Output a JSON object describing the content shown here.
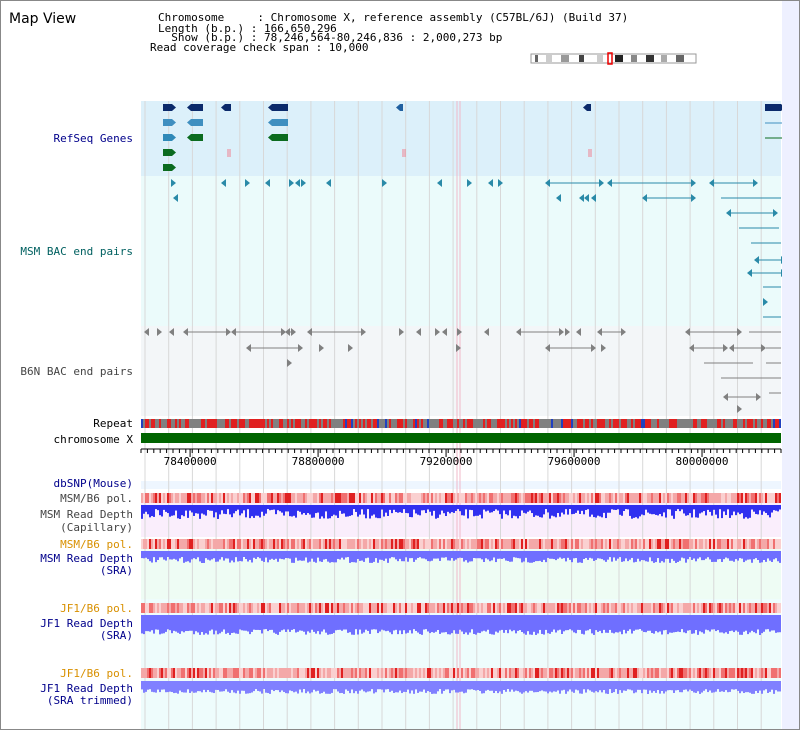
{
  "title": "Map View",
  "header": {
    "chromosome_line": "Chromosome     : Chromosome X, reference assembly (C57BL/6J) (Build 37)",
    "length_line": "Length (b.p.) : 166,650,296",
    "show_line": "  Show (b.p.) : 78,246,564-80,246,836 : 2,000,273 bp",
    "span_line": "Read coverage check span : 10,000"
  },
  "tracks": {
    "refseq": "RefSeq Genes",
    "msm_bac": "MSM BAC end pairs",
    "b6n_bac": "B6N BAC end pairs",
    "repeat": "Repeat",
    "chromosome": "chromosome X",
    "dbsnp": "dbSNP(Mouse)",
    "msm_b6_pol_1": "MSM/B6 pol.",
    "msm_depth_cap_1": "MSM Read Depth",
    "msm_depth_cap_2": "(Capillary)",
    "msm_b6_pol_2": "MSM/B6 pol.",
    "msm_depth_sra_1": "MSM Read Depth",
    "msm_depth_sra_2": "(SRA)",
    "jf1_b6_pol_1": "JF1/B6 pol.",
    "jf1_depth_sra_1": "JF1 Read Depth",
    "jf1_depth_sra_2": "(SRA)",
    "jf1_b6_pol_2": "JF1/B6 pol.",
    "jf1_depth_trim_1": "JF1 Read Depth",
    "jf1_depth_trim_2": "(SRA trimmed)"
  },
  "axis": {
    "start": 78246564,
    "end": 80246836,
    "ticks": [
      "78400000",
      "78800000",
      "79200000",
      "79600000",
      "80000000"
    ]
  },
  "colors": {
    "refseq_bg": "#dcf0fa",
    "msm_bg": "#ebfbfb",
    "b6n_bg": "#f3f6f8",
    "chrom_bar": "#006400",
    "repeat_red": "#e02020",
    "repeat_gray": "#808080",
    "depth_blue": "#6f6fff",
    "pol_pink": "#f4b4b4"
  }
}
